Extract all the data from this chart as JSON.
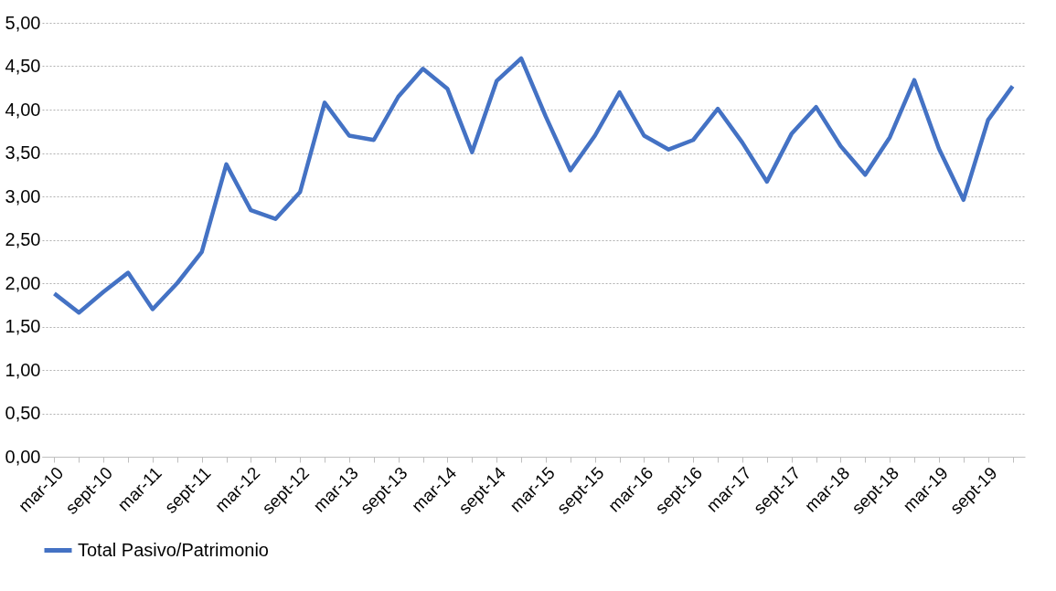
{
  "chart_data": {
    "type": "line",
    "categories": [
      "mar-10",
      null,
      "sept-10",
      null,
      "mar-11",
      null,
      "sept-11",
      null,
      "mar-12",
      null,
      "sept-12",
      null,
      "mar-13",
      null,
      "sept-13",
      null,
      "mar-14",
      null,
      "sept-14",
      null,
      "mar-15",
      null,
      "sept-15",
      null,
      "mar-16",
      null,
      "sept-16",
      null,
      "mar-17",
      null,
      "sept-17",
      null,
      "mar-18",
      null,
      "sept-18",
      null,
      "mar-19",
      null,
      "sept-19",
      null
    ],
    "series": [
      {
        "name": "Total Pasivo/Patrimonio",
        "color": "#4472c4",
        "values": [
          1.88,
          1.66,
          1.9,
          2.12,
          1.7,
          2.0,
          2.36,
          3.37,
          2.84,
          2.74,
          3.05,
          4.08,
          3.7,
          3.65,
          4.15,
          4.47,
          4.24,
          3.51,
          4.33,
          4.59,
          3.92,
          3.3,
          3.7,
          4.2,
          3.7,
          3.54,
          3.65,
          4.01,
          3.62,
          3.17,
          3.72,
          4.03,
          3.58,
          3.25,
          3.68,
          4.34,
          3.55,
          2.96,
          3.88,
          4.27
        ]
      }
    ],
    "ylim": [
      0,
      5
    ],
    "yticks": [
      {
        "value": 0,
        "label": "0,00"
      },
      {
        "value": 0.5,
        "label": "0,50"
      },
      {
        "value": 1,
        "label": "1,00"
      },
      {
        "value": 1.5,
        "label": "1,50"
      },
      {
        "value": 2,
        "label": "2,00"
      },
      {
        "value": 2.5,
        "label": "2,50"
      },
      {
        "value": 3,
        "label": "3,00"
      },
      {
        "value": 3.5,
        "label": "3,50"
      },
      {
        "value": 4,
        "label": "4,00"
      },
      {
        "value": 4.5,
        "label": "4,50"
      },
      {
        "value": 5,
        "label": "5,00"
      }
    ],
    "grid": "y",
    "legend": "bottom",
    "marker": "none",
    "line_style": "solid"
  }
}
